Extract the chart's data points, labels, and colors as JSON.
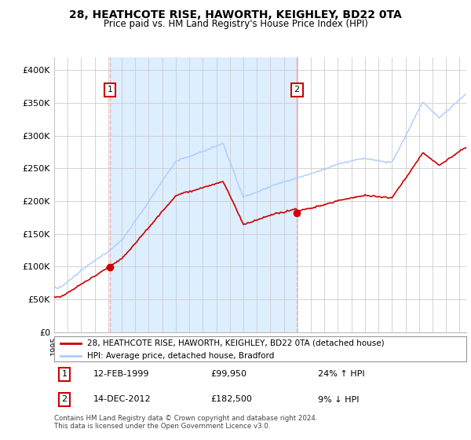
{
  "title": "28, HEATHCOTE RISE, HAWORTH, KEIGHLEY, BD22 0TA",
  "subtitle": "Price paid vs. HM Land Registry's House Price Index (HPI)",
  "legend_line1": "28, HEATHCOTE RISE, HAWORTH, KEIGHLEY, BD22 0TA (detached house)",
  "legend_line2": "HPI: Average price, detached house, Bradford",
  "sale1_date": "12-FEB-1999",
  "sale1_price": "£99,950",
  "sale1_hpi": "24% ↑ HPI",
  "sale1_year": 1999.12,
  "sale1_value": 99950,
  "sale2_date": "14-DEC-2012",
  "sale2_price": "£182,500",
  "sale2_hpi": "9% ↓ HPI",
  "sale2_year": 2012.96,
  "sale2_value": 182500,
  "footer": "Contains HM Land Registry data © Crown copyright and database right 2024.\nThis data is licensed under the Open Government Licence v3.0.",
  "hpi_color": "#aaccff",
  "property_color": "#cc0000",
  "vline_color": "#ffaaaa",
  "shade_color": "#ddeeff",
  "background_color": "#ffffff",
  "grid_color": "#cccccc",
  "ylim": [
    0,
    420000
  ],
  "xlim_start": 1995.0,
  "xlim_end": 2025.5,
  "yticks": [
    0,
    50000,
    100000,
    150000,
    200000,
    250000,
    300000,
    350000,
    400000
  ],
  "ytick_labels": [
    "£0",
    "£50K",
    "£100K",
    "£150K",
    "£200K",
    "£250K",
    "£300K",
    "£350K",
    "£400K"
  ]
}
